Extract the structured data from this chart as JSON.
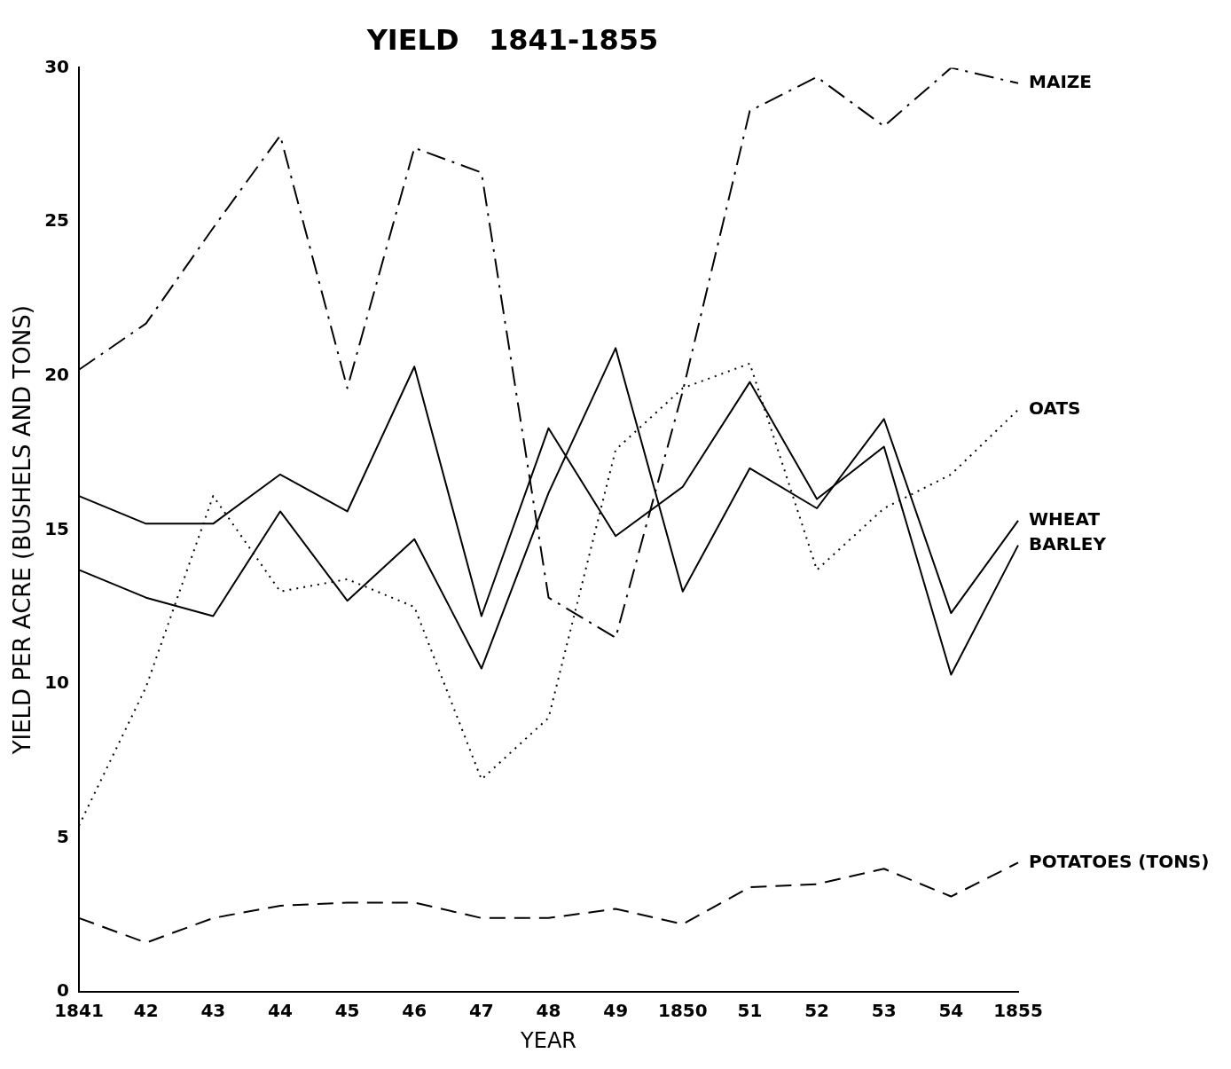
{
  "chart_data": {
    "type": "line",
    "title": "YIELD   1841-1855",
    "xlabel": "YEAR",
    "ylabel": "YIELD PER ACRE (BUSHELS AND TONS)",
    "categories": [
      "1841",
      "42",
      "43",
      "44",
      "45",
      "46",
      "47",
      "48",
      "49",
      "1850",
      "51",
      "52",
      "53",
      "54",
      "1855"
    ],
    "ylim": [
      0,
      30
    ],
    "yticks": [
      0,
      5,
      10,
      15,
      20,
      25,
      30
    ],
    "grid": false,
    "legend": false,
    "marker": "none",
    "series": [
      {
        "name": "MAIZE",
        "color": "#000000",
        "line_style": "dashdot",
        "values": [
          20.2,
          21.7,
          24.8,
          27.8,
          19.6,
          27.4,
          26.6,
          12.8,
          11.5,
          19.5,
          28.6,
          29.7,
          28.1,
          30.0,
          29.5
        ]
      },
      {
        "name": "OATS",
        "color": "#000000",
        "line_style": "dotted",
        "values": [
          5.4,
          9.9,
          16.1,
          13.0,
          13.4,
          12.5,
          6.9,
          8.9,
          17.6,
          19.6,
          20.4,
          13.7,
          15.7,
          16.8,
          18.9
        ]
      },
      {
        "name": "WHEAT",
        "color": "#000000",
        "line_style": "solid",
        "values": [
          13.7,
          12.8,
          12.2,
          15.6,
          12.7,
          14.7,
          10.5,
          16.2,
          20.9,
          13.0,
          17.0,
          15.7,
          18.6,
          12.3,
          15.3
        ]
      },
      {
        "name": "BARLEY",
        "color": "#000000",
        "line_style": "solid",
        "values": [
          16.1,
          15.2,
          15.2,
          16.8,
          15.6,
          20.3,
          12.2,
          18.3,
          14.8,
          16.4,
          19.8,
          16.0,
          17.7,
          10.3,
          14.5
        ]
      },
      {
        "name": "POTATOES (TONS)",
        "color": "#000000",
        "line_style": "dashed",
        "values": [
          2.4,
          1.6,
          2.4,
          2.8,
          2.9,
          2.9,
          2.4,
          2.4,
          2.7,
          2.2,
          3.4,
          3.5,
          4.0,
          3.1,
          4.2
        ]
      }
    ]
  }
}
